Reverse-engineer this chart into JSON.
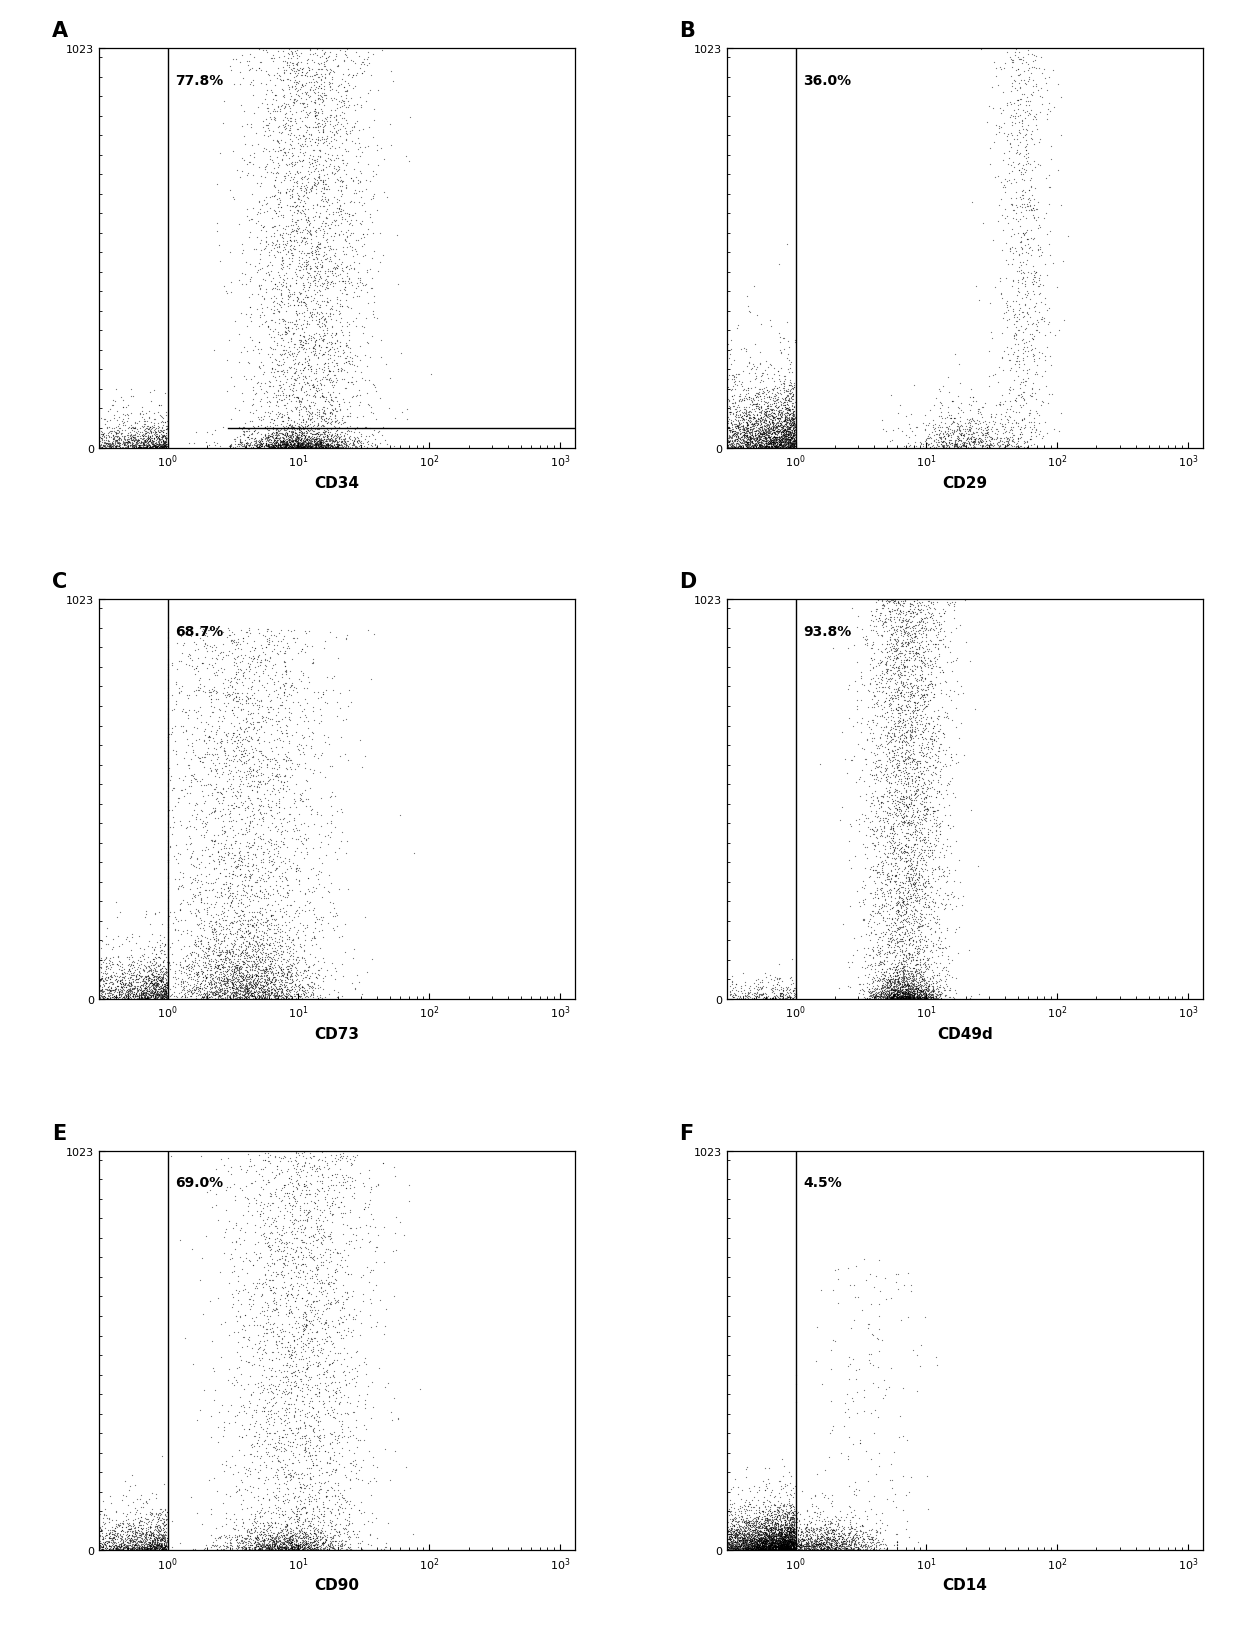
{
  "panels": [
    {
      "label": "A",
      "xlabel": "CD34",
      "percentage": "77.8%",
      "n_points": 4000,
      "pattern": "spread_vertical",
      "pct_positive": 0.778,
      "has_hline": true
    },
    {
      "label": "B",
      "xlabel": "CD29",
      "percentage": "36.0%",
      "n_points": 4000,
      "pattern": "j_curve",
      "pct_positive": 0.36,
      "has_hline": false
    },
    {
      "label": "C",
      "xlabel": "CD73",
      "percentage": "68.7%",
      "n_points": 4000,
      "pattern": "broad_spread",
      "pct_positive": 0.687,
      "has_hline": false
    },
    {
      "label": "D",
      "xlabel": "CD49d",
      "percentage": "93.8%",
      "n_points": 4000,
      "pattern": "tight_vertical",
      "pct_positive": 0.938,
      "has_hline": false
    },
    {
      "label": "E",
      "xlabel": "CD90",
      "percentage": "69.0%",
      "n_points": 4000,
      "pattern": "spread_vertical2",
      "pct_positive": 0.69,
      "has_hline": false
    },
    {
      "label": "F",
      "xlabel": "CD14",
      "percentage": "4.5%",
      "n_points": 4000,
      "pattern": "low_positive",
      "pct_positive": 0.045,
      "has_hline": false
    }
  ],
  "ylim": [
    0,
    1023
  ],
  "xlim_log": [
    0.3,
    1300
  ],
  "gate_line_x": 1.0,
  "hline_y": 50,
  "background_color": "#ffffff",
  "dot_color": "#000000",
  "dot_size": 0.8,
  "dot_alpha": 0.55,
  "fig_width": 12.4,
  "fig_height": 16.33,
  "dpi": 100
}
